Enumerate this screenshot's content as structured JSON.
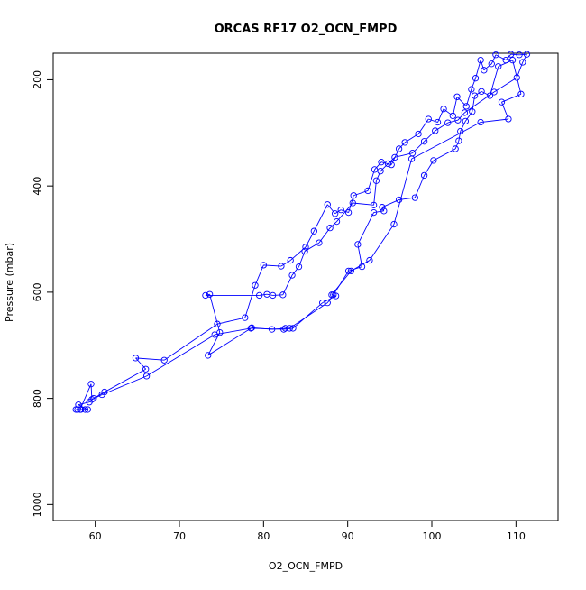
{
  "chart_data": {
    "type": "scatter",
    "title": "ORCAS RF17 O2_OCN_FMPD",
    "xlabel": "O2_OCN_FMPD",
    "ylabel": "Pressure (mbar)",
    "xlim": [
      55,
      115
    ],
    "ylim": [
      1030,
      150
    ],
    "y_inverted": true,
    "x_ticks": [
      60,
      70,
      80,
      90,
      100,
      110
    ],
    "y_ticks": [
      200,
      400,
      600,
      800,
      1000
    ],
    "grid": false,
    "legend": "none",
    "color": "#0000ff",
    "marker": "open-circle",
    "connected": true,
    "series": [
      {
        "points": [
          [
            57.9,
            821
          ],
          [
            58.3,
            821
          ],
          [
            58.8,
            821
          ],
          [
            59.1,
            821
          ],
          [
            58.0,
            812
          ],
          [
            59.3,
            807
          ],
          [
            59.8,
            800
          ],
          [
            61.1,
            788
          ],
          [
            66.0,
            745
          ],
          [
            64.8,
            724
          ],
          [
            68.2,
            728
          ],
          [
            74.5,
            660
          ],
          [
            77.8,
            648
          ],
          [
            79.0,
            587
          ],
          [
            80.0,
            549
          ],
          [
            82.1,
            551
          ],
          [
            83.2,
            540
          ],
          [
            85.0,
            515
          ],
          [
            86.0,
            485
          ],
          [
            87.6,
            435
          ],
          [
            88.5,
            452
          ],
          [
            89.2,
            445
          ],
          [
            90.1,
            450
          ],
          [
            90.7,
            418
          ],
          [
            92.4,
            409
          ],
          [
            93.2,
            369
          ],
          [
            94.0,
            355
          ],
          [
            95.2,
            360
          ],
          [
            96.1,
            330
          ],
          [
            96.8,
            318
          ],
          [
            98.4,
            302
          ],
          [
            99.6,
            274
          ],
          [
            100.7,
            280
          ],
          [
            101.4,
            255
          ],
          [
            102.5,
            268
          ],
          [
            103.0,
            232
          ],
          [
            104.1,
            250
          ],
          [
            104.7,
            218
          ],
          [
            105.2,
            197
          ],
          [
            105.8,
            163
          ],
          [
            106.2,
            182
          ],
          [
            107.1,
            170
          ],
          [
            107.6,
            153
          ],
          [
            108.8,
            163
          ],
          [
            109.4,
            152
          ],
          [
            110.4,
            153
          ],
          [
            111.3,
            152
          ],
          [
            110.8,
            167
          ],
          [
            110.1,
            196
          ],
          [
            107.4,
            223
          ],
          [
            103.9,
            262
          ],
          [
            103.1,
            276
          ],
          [
            101.9,
            281
          ],
          [
            100.4,
            296
          ],
          [
            99.1,
            316
          ],
          [
            97.7,
            338
          ],
          [
            95.6,
            346
          ],
          [
            94.8,
            358
          ],
          [
            93.9,
            372
          ],
          [
            93.4,
            390
          ],
          [
            93.1,
            436
          ],
          [
            90.6,
            432
          ],
          [
            88.7,
            467
          ],
          [
            87.9,
            479
          ],
          [
            86.6,
            507
          ],
          [
            84.9,
            523
          ],
          [
            84.2,
            552
          ],
          [
            83.4,
            568
          ],
          [
            82.3,
            605
          ],
          [
            81.1,
            606
          ],
          [
            80.4,
            604
          ],
          [
            79.5,
            606
          ],
          [
            73.1,
            606
          ],
          [
            73.6,
            604
          ],
          [
            74.8,
            676
          ],
          [
            73.4,
            719
          ],
          [
            78.6,
            667
          ],
          [
            81.0,
            670
          ],
          [
            82.6,
            668
          ],
          [
            83.1,
            668
          ],
          [
            87.6,
            620
          ],
          [
            88.3,
            605
          ],
          [
            90.1,
            560
          ],
          [
            91.7,
            552
          ],
          [
            91.2,
            510
          ],
          [
            93.1,
            450
          ],
          [
            94.3,
            447
          ],
          [
            94.1,
            440
          ],
          [
            96.1,
            426
          ],
          [
            98.0,
            422
          ],
          [
            99.1,
            380
          ],
          [
            100.2,
            352
          ],
          [
            102.8,
            330
          ],
          [
            103.2,
            315
          ],
          [
            103.4,
            297
          ],
          [
            104.0,
            278
          ],
          [
            104.8,
            260
          ],
          [
            105.1,
            230
          ],
          [
            105.9,
            222
          ],
          [
            106.9,
            230
          ],
          [
            107.9,
            175
          ],
          [
            109.6,
            163
          ],
          [
            110.6,
            227
          ],
          [
            108.3,
            242
          ],
          [
            109.1,
            274
          ],
          [
            105.8,
            280
          ],
          [
            97.6,
            349
          ],
          [
            95.5,
            472
          ],
          [
            92.6,
            540
          ],
          [
            90.4,
            560
          ],
          [
            88.1,
            605
          ],
          [
            88.6,
            607
          ],
          [
            87.0,
            620
          ],
          [
            83.5,
            668
          ],
          [
            82.4,
            670
          ],
          [
            78.5,
            668
          ],
          [
            74.2,
            680
          ],
          [
            66.1,
            758
          ],
          [
            60.8,
            793
          ],
          [
            59.6,
            802
          ],
          [
            59.5,
            773
          ],
          [
            58.2,
            821
          ],
          [
            57.7,
            821
          ]
        ]
      }
    ]
  }
}
